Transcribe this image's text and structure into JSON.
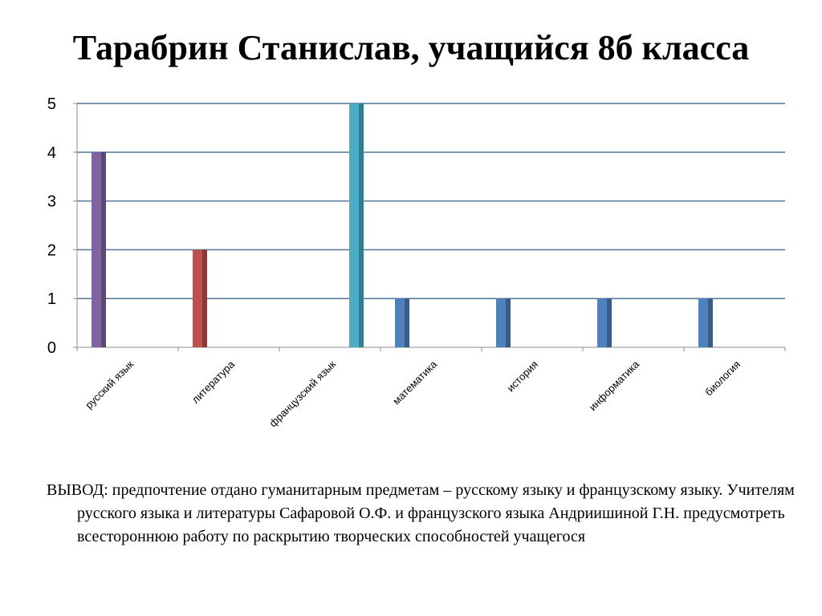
{
  "slide": {
    "title": "Тарабрин Станислав, учащийся 8б  класса",
    "conclusion_label": "ВЫВОД:",
    "conclusion_text": "предпочтение отдано гуманитарным предметам – русскому языку и французскому языку. Учителям русского языка и литературы Сафаровой О.Ф. и французского языка Андриишиной Г.Н. предусмотреть всестороннюю работу по раскрытию творческих способностей учащегося"
  },
  "chart_data": {
    "type": "bar",
    "title": "",
    "xlabel": "",
    "ylabel": "",
    "ylim": [
      0,
      5
    ],
    "yticks": [
      "0",
      "1",
      "2",
      "3",
      "4",
      "5"
    ],
    "grid": true,
    "legend": "none",
    "categories": [
      "русский язык",
      "литература",
      "французский язык",
      "математика",
      "история",
      "информатика",
      "биология"
    ],
    "series": [
      {
        "values": [
          4,
          2,
          0,
          1,
          1,
          1,
          1
        ],
        "colors": [
          "#8064A2",
          "#C0504D",
          "#4BACC6",
          "#4F81BD",
          "#4F81BD",
          "#4F81BD",
          "#4F81BD"
        ]
      },
      {
        "values": [
          0,
          0,
          5,
          0,
          0,
          0,
          0
        ],
        "colors": [
          "#4BACC6",
          "#4BACC6",
          "#4BACC6",
          "#4BACC6",
          "#4BACC6",
          "#4BACC6",
          "#4BACC6"
        ]
      }
    ],
    "colors": {
      "gridline": "#4F7399",
      "axis": "#8C8C8C"
    }
  }
}
